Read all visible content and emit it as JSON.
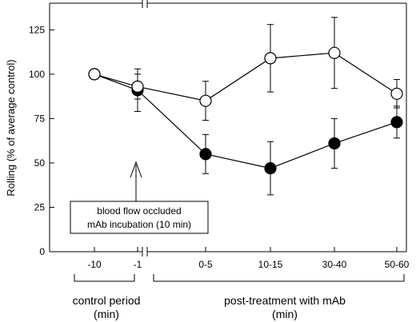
{
  "chart_data": {
    "type": "line",
    "title": "",
    "xlabel": "",
    "ylabel": "Rolling (% of average control)",
    "ylim": [
      0,
      140
    ],
    "yticks": [
      0,
      25,
      50,
      75,
      100,
      125
    ],
    "categories": [
      "-10",
      "-1",
      "0-5",
      "10-15",
      "30-40",
      "50-60"
    ],
    "axis_break": "between -1 and 0-5",
    "grid": false,
    "legend": "none",
    "series": [
      {
        "marker": "open-circle",
        "values": [
          100,
          93,
          85,
          109,
          112,
          89
        ],
        "errors": [
          null,
          7,
          11,
          19,
          20,
          8
        ]
      },
      {
        "marker": "filled-circle",
        "values": [
          100,
          91,
          55,
          47,
          61,
          73
        ],
        "errors": [
          null,
          12,
          11,
          15,
          14,
          9
        ]
      }
    ],
    "annotation": {
      "lines": [
        "blood flow occluded",
        "mAb incubation (10 min)"
      ],
      "arrow_target": "-1"
    },
    "groups": [
      {
        "label_lines": [
          "control period",
          "(min)"
        ],
        "span": [
          "-10",
          "-1"
        ]
      },
      {
        "label_lines": [
          "post-treatment with mAb",
          "(min)"
        ],
        "span": [
          "0-5",
          "50-60"
        ]
      }
    ]
  }
}
